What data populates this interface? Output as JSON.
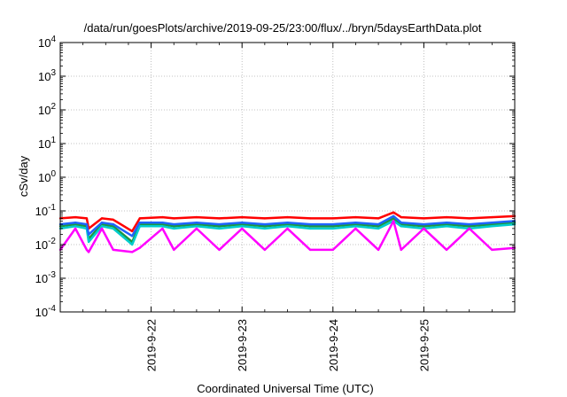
{
  "chart_data": {
    "type": "line",
    "title": "/data/run/goesPlots/archive/2019-09-25/23:00/flux/../bryn/5daysEarthData.plot",
    "xlabel": "Coordinated Universal Time (UTC)",
    "ylabel": "cSv/day",
    "x_range": [
      "2019-09-21T00:00",
      "2019-09-26T00:00"
    ],
    "xticks": [
      {
        "date": "2019-09-22",
        "label": "2019-9-22"
      },
      {
        "date": "2019-09-23",
        "label": "2019-9-23"
      },
      {
        "date": "2019-09-24",
        "label": "2019-9-24"
      },
      {
        "date": "2019-09-25",
        "label": "2019-9-25"
      }
    ],
    "y_scale": "log",
    "ylim": [
      0.0001,
      10000
    ],
    "yticks": [
      {
        "value": 10000,
        "base": "10",
        "exp": "4"
      },
      {
        "value": 1000,
        "base": "10",
        "exp": "3"
      },
      {
        "value": 100,
        "base": "10",
        "exp": "2"
      },
      {
        "value": 10,
        "base": "10",
        "exp": "1"
      },
      {
        "value": 1,
        "base": "10",
        "exp": "0"
      },
      {
        "value": 0.1,
        "base": "10",
        "exp": "-1"
      },
      {
        "value": 0.01,
        "base": "10",
        "exp": "-2"
      },
      {
        "value": 0.001,
        "base": "10",
        "exp": "-3"
      },
      {
        "value": 0.0001,
        "base": "10",
        "exp": "-4"
      }
    ],
    "grid": true,
    "series": [
      {
        "color": "#ff0000",
        "x": [
          "2019-09-21T00:00",
          "2019-09-21T04:00",
          "2019-09-21T07:00",
          "2019-09-21T07:30",
          "2019-09-21T11:00",
          "2019-09-21T14:00",
          "2019-09-21T19:00",
          "2019-09-21T21:00",
          "2019-09-22T03:00",
          "2019-09-22T06:00",
          "2019-09-22T12:00",
          "2019-09-22T18:00",
          "2019-09-23T00:00",
          "2019-09-23T06:00",
          "2019-09-23T12:00",
          "2019-09-23T18:00",
          "2019-09-24T00:00",
          "2019-09-24T06:00",
          "2019-09-24T12:00",
          "2019-09-24T16:00",
          "2019-09-24T18:00",
          "2019-09-25T00:00",
          "2019-09-25T06:00",
          "2019-09-25T12:00",
          "2019-09-25T18:00",
          "2019-09-26T00:00"
        ],
        "values": [
          0.06,
          0.065,
          0.06,
          0.03,
          0.06,
          0.055,
          0.025,
          0.06,
          0.065,
          0.06,
          0.065,
          0.06,
          0.065,
          0.06,
          0.065,
          0.06,
          0.06,
          0.065,
          0.06,
          0.09,
          0.065,
          0.06,
          0.065,
          0.06,
          0.065,
          0.07
        ]
      },
      {
        "color": "#1a9641",
        "x": [
          "2019-09-21T00:00",
          "2019-09-21T04:00",
          "2019-09-21T07:00",
          "2019-09-21T07:30",
          "2019-09-21T11:00",
          "2019-09-21T14:00",
          "2019-09-21T19:00",
          "2019-09-21T21:00",
          "2019-09-22T03:00",
          "2019-09-22T06:00",
          "2019-09-22T12:00",
          "2019-09-22T18:00",
          "2019-09-23T00:00",
          "2019-09-23T06:00",
          "2019-09-23T12:00",
          "2019-09-23T18:00",
          "2019-09-24T00:00",
          "2019-09-24T06:00",
          "2019-09-24T12:00",
          "2019-09-24T16:00",
          "2019-09-24T18:00",
          "2019-09-25T00:00",
          "2019-09-25T06:00",
          "2019-09-25T12:00",
          "2019-09-25T18:00",
          "2019-09-26T00:00"
        ],
        "values": [
          0.035,
          0.04,
          0.035,
          0.015,
          0.04,
          0.035,
          0.012,
          0.04,
          0.04,
          0.035,
          0.04,
          0.035,
          0.04,
          0.035,
          0.04,
          0.035,
          0.035,
          0.04,
          0.035,
          0.06,
          0.04,
          0.035,
          0.04,
          0.035,
          0.04,
          0.045
        ]
      },
      {
        "color": "#00cccc",
        "x": [
          "2019-09-21T00:00",
          "2019-09-21T04:00",
          "2019-09-21T07:00",
          "2019-09-21T07:30",
          "2019-09-21T11:00",
          "2019-09-21T14:00",
          "2019-09-21T19:00",
          "2019-09-21T21:00",
          "2019-09-22T03:00",
          "2019-09-22T06:00",
          "2019-09-22T12:00",
          "2019-09-22T18:00",
          "2019-09-23T00:00",
          "2019-09-23T06:00",
          "2019-09-23T12:00",
          "2019-09-23T18:00",
          "2019-09-24T00:00",
          "2019-09-24T06:00",
          "2019-09-24T12:00",
          "2019-09-24T16:00",
          "2019-09-24T18:00",
          "2019-09-25T00:00",
          "2019-09-25T06:00",
          "2019-09-25T12:00",
          "2019-09-25T18:00",
          "2019-09-26T00:00"
        ],
        "values": [
          0.03,
          0.035,
          0.03,
          0.012,
          0.035,
          0.03,
          0.01,
          0.035,
          0.035,
          0.03,
          0.035,
          0.03,
          0.035,
          0.03,
          0.035,
          0.03,
          0.03,
          0.035,
          0.03,
          0.05,
          0.035,
          0.03,
          0.035,
          0.03,
          0.035,
          0.04
        ]
      },
      {
        "color": "#1e64ff",
        "x": [
          "2019-09-21T00:00",
          "2019-09-21T04:00",
          "2019-09-21T07:00",
          "2019-09-21T07:30",
          "2019-09-21T11:00",
          "2019-09-21T14:00",
          "2019-09-21T19:00",
          "2019-09-21T21:00",
          "2019-09-22T03:00",
          "2019-09-22T06:00",
          "2019-09-22T12:00",
          "2019-09-22T18:00",
          "2019-09-23T00:00",
          "2019-09-23T06:00",
          "2019-09-23T12:00",
          "2019-09-23T18:00",
          "2019-09-24T00:00",
          "2019-09-24T06:00",
          "2019-09-24T12:00",
          "2019-09-24T16:00",
          "2019-09-24T18:00",
          "2019-09-25T00:00",
          "2019-09-25T06:00",
          "2019-09-25T12:00",
          "2019-09-25T18:00",
          "2019-09-26T00:00"
        ],
        "values": [
          0.04,
          0.045,
          0.04,
          0.02,
          0.045,
          0.04,
          0.018,
          0.045,
          0.045,
          0.04,
          0.045,
          0.04,
          0.045,
          0.04,
          0.045,
          0.04,
          0.04,
          0.045,
          0.04,
          0.07,
          0.045,
          0.04,
          0.045,
          0.04,
          0.045,
          0.05
        ]
      },
      {
        "color": "#ff00ff",
        "x": [
          "2019-09-21T00:00",
          "2019-09-21T04:00",
          "2019-09-21T07:00",
          "2019-09-21T07:30",
          "2019-09-21T11:00",
          "2019-09-21T14:00",
          "2019-09-21T19:00",
          "2019-09-21T21:00",
          "2019-09-22T03:00",
          "2019-09-22T06:00",
          "2019-09-22T12:00",
          "2019-09-22T18:00",
          "2019-09-23T00:00",
          "2019-09-23T06:00",
          "2019-09-23T12:00",
          "2019-09-23T18:00",
          "2019-09-24T00:00",
          "2019-09-24T06:00",
          "2019-09-24T12:00",
          "2019-09-24T16:00",
          "2019-09-24T18:00",
          "2019-09-25T00:00",
          "2019-09-25T06:00",
          "2019-09-25T12:00",
          "2019-09-25T18:00",
          "2019-09-26T00:00"
        ],
        "values": [
          0.007,
          0.03,
          0.007,
          0.006,
          0.03,
          0.007,
          0.006,
          0.008,
          0.03,
          0.007,
          0.03,
          0.007,
          0.03,
          0.007,
          0.03,
          0.007,
          0.007,
          0.03,
          0.007,
          0.05,
          0.007,
          0.03,
          0.007,
          0.03,
          0.007,
          0.008
        ]
      }
    ]
  }
}
